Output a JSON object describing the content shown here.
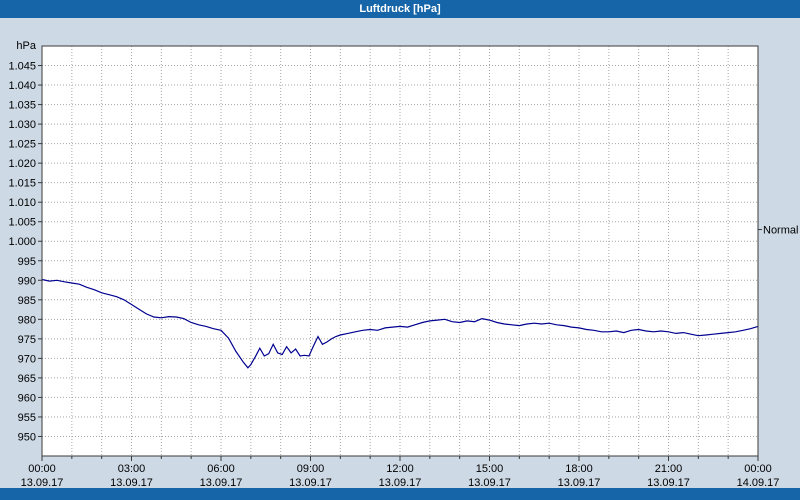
{
  "title": "Luftdruck [hPa]",
  "colors": {
    "titlebar": "#1565a8",
    "background": "#cdd9e5",
    "plot_bg": "#ffffff",
    "grid": "#a6a6a6",
    "line": "#000090",
    "border": "#3a3a3a",
    "text": "#000000"
  },
  "chart_data": {
    "type": "line",
    "title": "Luftdruck [hPa]",
    "xlabel": "",
    "ylabel": "hPa",
    "xlim": [
      0,
      24
    ],
    "ylim": [
      945,
      1050
    ],
    "grid": "dotted; vertical every hour, horizontal every 5 hPa",
    "legend": "none",
    "annotation": {
      "label": "Normal",
      "value": 1003
    },
    "y_ticks": [
      {
        "label": "1.045",
        "value": 1045
      },
      {
        "label": "1.040",
        "value": 1040
      },
      {
        "label": "1.035",
        "value": 1035
      },
      {
        "label": "1.030",
        "value": 1030
      },
      {
        "label": "1.025",
        "value": 1025
      },
      {
        "label": "1.020",
        "value": 1020
      },
      {
        "label": "1.015",
        "value": 1015
      },
      {
        "label": "1.010",
        "value": 1010
      },
      {
        "label": "1.005",
        "value": 1005
      },
      {
        "label": "1.000",
        "value": 1000
      },
      {
        "label": "995",
        "value": 995
      },
      {
        "label": "990",
        "value": 990
      },
      {
        "label": "985",
        "value": 985
      },
      {
        "label": "980",
        "value": 980
      },
      {
        "label": "975",
        "value": 975
      },
      {
        "label": "970",
        "value": 970
      },
      {
        "label": "965",
        "value": 965
      },
      {
        "label": "960",
        "value": 960
      },
      {
        "label": "955",
        "value": 955
      },
      {
        "label": "950",
        "value": 950
      }
    ],
    "x_ticks": [
      {
        "label": "00:00",
        "date": "13.09.17",
        "hour": 0
      },
      {
        "label": "03:00",
        "date": "13.09.17",
        "hour": 3
      },
      {
        "label": "06:00",
        "date": "13.09.17",
        "hour": 6
      },
      {
        "label": "09:00",
        "date": "13.09.17",
        "hour": 9
      },
      {
        "label": "12:00",
        "date": "13.09.17",
        "hour": 12
      },
      {
        "label": "15:00",
        "date": "13.09.17",
        "hour": 15
      },
      {
        "label": "18:00",
        "date": "13.09.17",
        "hour": 18
      },
      {
        "label": "21:00",
        "date": "13.09.17",
        "hour": 21
      },
      {
        "label": "00:00",
        "date": "14.09.17",
        "hour": 24
      }
    ],
    "series": [
      {
        "name": "Luftdruck",
        "points": [
          [
            0,
            990.2
          ],
          [
            0.25,
            989.8
          ],
          [
            0.5,
            990
          ],
          [
            0.75,
            989.6
          ],
          [
            1,
            989.3
          ],
          [
            1.25,
            989
          ],
          [
            1.5,
            988.2
          ],
          [
            1.75,
            987.6
          ],
          [
            2,
            986.8
          ],
          [
            2.25,
            986.3
          ],
          [
            2.5,
            985.8
          ],
          [
            2.75,
            985
          ],
          [
            3,
            983.8
          ],
          [
            3.25,
            982.6
          ],
          [
            3.5,
            981.4
          ],
          [
            3.75,
            980.6
          ],
          [
            4,
            980.4
          ],
          [
            4.25,
            980.7
          ],
          [
            4.5,
            980.6
          ],
          [
            4.75,
            980.2
          ],
          [
            5,
            979.2
          ],
          [
            5.25,
            978.6
          ],
          [
            5.5,
            978.2
          ],
          [
            5.75,
            977.6
          ],
          [
            6,
            977.2
          ],
          [
            6.25,
            975.2
          ],
          [
            6.5,
            971.8
          ],
          [
            6.75,
            969
          ],
          [
            6.9,
            967.6
          ],
          [
            7,
            968.4
          ],
          [
            7.15,
            970.4
          ],
          [
            7.3,
            972.6
          ],
          [
            7.45,
            970.6
          ],
          [
            7.6,
            971.2
          ],
          [
            7.75,
            973.6
          ],
          [
            7.9,
            971.4
          ],
          [
            8.05,
            971
          ],
          [
            8.2,
            973
          ],
          [
            8.35,
            971.4
          ],
          [
            8.5,
            972.4
          ],
          [
            8.65,
            970.6
          ],
          [
            8.8,
            970.8
          ],
          [
            8.95,
            970.6
          ],
          [
            9.1,
            973.2
          ],
          [
            9.25,
            975.6
          ],
          [
            9.4,
            973.6
          ],
          [
            9.55,
            974.2
          ],
          [
            9.7,
            975
          ],
          [
            9.85,
            975.6
          ],
          [
            10,
            976
          ],
          [
            10.25,
            976.4
          ],
          [
            10.5,
            976.8
          ],
          [
            10.75,
            977.2
          ],
          [
            11,
            977.4
          ],
          [
            11.25,
            977.2
          ],
          [
            11.5,
            977.8
          ],
          [
            11.75,
            978
          ],
          [
            12,
            978.2
          ],
          [
            12.25,
            978
          ],
          [
            12.5,
            978.6
          ],
          [
            12.75,
            979.2
          ],
          [
            13,
            979.6
          ],
          [
            13.25,
            979.8
          ],
          [
            13.5,
            980
          ],
          [
            13.75,
            979.4
          ],
          [
            14,
            979.2
          ],
          [
            14.25,
            979.6
          ],
          [
            14.5,
            979.4
          ],
          [
            14.75,
            980.2
          ],
          [
            15,
            979.8
          ],
          [
            15.25,
            979.2
          ],
          [
            15.5,
            978.8
          ],
          [
            15.75,
            978.6
          ],
          [
            16,
            978.4
          ],
          [
            16.25,
            978.8
          ],
          [
            16.5,
            979
          ],
          [
            16.75,
            978.8
          ],
          [
            17,
            979
          ],
          [
            17.25,
            978.6
          ],
          [
            17.5,
            978.4
          ],
          [
            17.75,
            978
          ],
          [
            18,
            977.8
          ],
          [
            18.25,
            977.4
          ],
          [
            18.5,
            977.2
          ],
          [
            18.75,
            976.8
          ],
          [
            19,
            976.8
          ],
          [
            19.25,
            977
          ],
          [
            19.5,
            976.6
          ],
          [
            19.75,
            977.2
          ],
          [
            20,
            977.4
          ],
          [
            20.25,
            977
          ],
          [
            20.5,
            976.8
          ],
          [
            20.75,
            977
          ],
          [
            21,
            976.8
          ],
          [
            21.25,
            976.4
          ],
          [
            21.5,
            976.6
          ],
          [
            21.75,
            976.2
          ],
          [
            22,
            975.8
          ],
          [
            22.25,
            976
          ],
          [
            22.5,
            976.2
          ],
          [
            22.75,
            976.4
          ],
          [
            23,
            976.6
          ],
          [
            23.25,
            976.8
          ],
          [
            23.5,
            977.2
          ],
          [
            23.75,
            977.6
          ],
          [
            24,
            978.2
          ]
        ]
      }
    ]
  }
}
